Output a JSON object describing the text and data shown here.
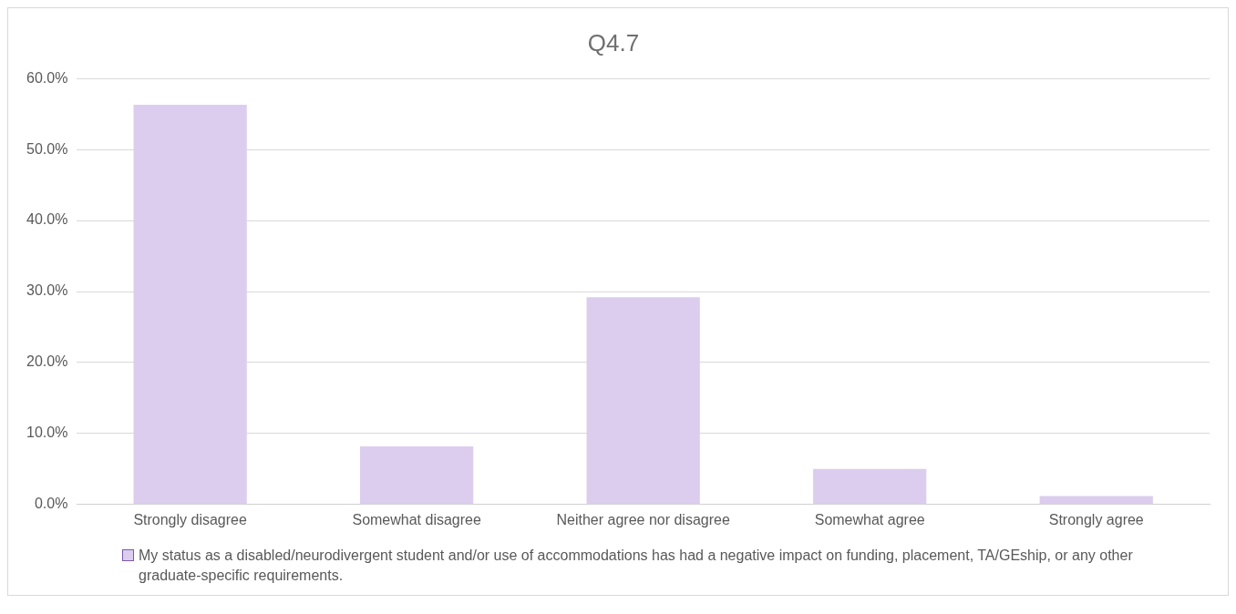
{
  "chart_data": {
    "type": "bar",
    "title": "Q4.7",
    "categories": [
      "Strongly disagree",
      "Somewhat disagree",
      "Neither agree nor disagree",
      "Somewhat agree",
      "Strongly agree"
    ],
    "series": [
      {
        "name": "My status as a disabled/neurodivergent student and/or use of accommodations has had a negative impact on funding, placement, TA/GEship, or any other graduate-specific requirements.",
        "color": "#dccdee",
        "values": [
          56.3,
          8.2,
          29.2,
          5.0,
          1.2
        ]
      }
    ],
    "ylim": [
      0,
      60
    ],
    "yticks": [
      {
        "value": 0,
        "label": "0.0%"
      },
      {
        "value": 10,
        "label": "10.0%"
      },
      {
        "value": 20,
        "label": "20.0%"
      },
      {
        "value": 30,
        "label": "30.0%"
      },
      {
        "value": 40,
        "label": "40.0%"
      },
      {
        "value": 50,
        "label": "50.0%"
      },
      {
        "value": 60,
        "label": "60.0%"
      }
    ],
    "grid": "y",
    "legend": "bottom"
  }
}
